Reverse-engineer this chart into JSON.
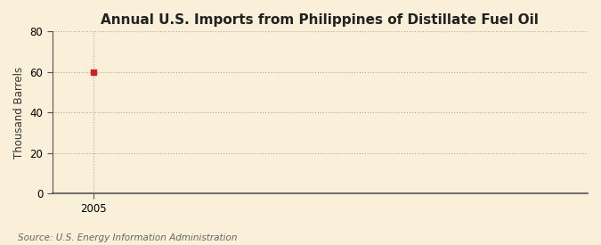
{
  "title": "Annual U.S. Imports from Philippines of Distillate Fuel Oil",
  "ylabel": "Thousand Barrels",
  "source": "Source: U.S. Energy Information Administration",
  "x_data": [
    2005
  ],
  "y_data": [
    60
  ],
  "xlim": [
    2004.3,
    2013.5
  ],
  "ylim": [
    0,
    80
  ],
  "yticks": [
    0,
    20,
    40,
    60,
    80
  ],
  "xticks": [
    2005
  ],
  "marker_color": "#cc2222",
  "marker_size": 4,
  "background_color": "#faefd8",
  "plot_bg_color": "#faefd8",
  "grid_color": "#aaaaaa",
  "vline_color": "#aaaaaa",
  "title_fontsize": 11,
  "label_fontsize": 8.5,
  "tick_fontsize": 8.5,
  "source_fontsize": 7.5,
  "spine_color": "#555555"
}
